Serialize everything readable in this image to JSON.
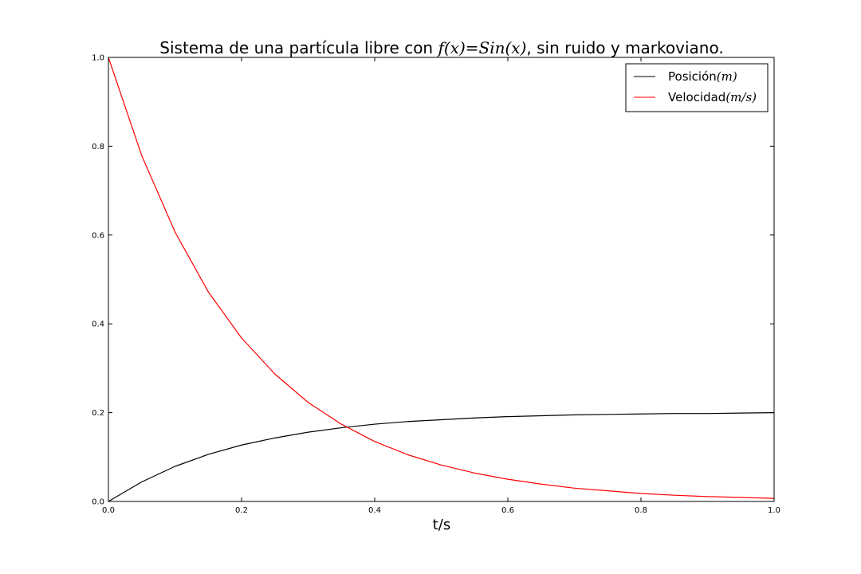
{
  "chart_data": {
    "type": "line",
    "title": {
      "prefix": "Sistema de una partícula libre con ",
      "math": "f(x)=Sin(x)",
      "suffix": ", sin ruido y markoviano."
    },
    "xlabel": "t/s",
    "ylabel": "",
    "xlim": [
      0.0,
      1.0
    ],
    "ylim": [
      0.0,
      1.0
    ],
    "xticks": [
      0.0,
      0.2,
      0.4,
      0.6,
      0.8,
      1.0
    ],
    "xtick_labels": [
      "0.0",
      "0.2",
      "0.4",
      "0.6",
      "0.8",
      "1.0"
    ],
    "yticks": [
      0.0,
      0.2,
      0.4,
      0.6,
      0.8,
      1.0
    ],
    "ytick_labels": [
      "0.0",
      "0.2",
      "0.4",
      "0.6",
      "0.8",
      "1.0"
    ],
    "grid": false,
    "legend_position": "top-right",
    "x": [
      0.0,
      0.05,
      0.1,
      0.15,
      0.2,
      0.25,
      0.3,
      0.35,
      0.4,
      0.45,
      0.5,
      0.55,
      0.6,
      0.65,
      0.7,
      0.75,
      0.8,
      0.85,
      0.9,
      0.95,
      1.0
    ],
    "series": [
      {
        "name": "Posición",
        "name_math": "(m)",
        "color": "#000000",
        "values": [
          0.0,
          0.044,
          0.079,
          0.106,
          0.127,
          0.143,
          0.156,
          0.166,
          0.174,
          0.18,
          0.184,
          0.188,
          0.191,
          0.193,
          0.195,
          0.196,
          0.197,
          0.198,
          0.198,
          0.199,
          0.2
        ]
      },
      {
        "name": "Velocidad",
        "name_math": "(m/s)",
        "color": "#ff0000",
        "values": [
          1.0,
          0.779,
          0.607,
          0.472,
          0.368,
          0.287,
          0.223,
          0.174,
          0.135,
          0.105,
          0.082,
          0.064,
          0.05,
          0.039,
          0.03,
          0.024,
          0.018,
          0.014,
          0.011,
          0.009,
          0.007
        ]
      }
    ]
  }
}
